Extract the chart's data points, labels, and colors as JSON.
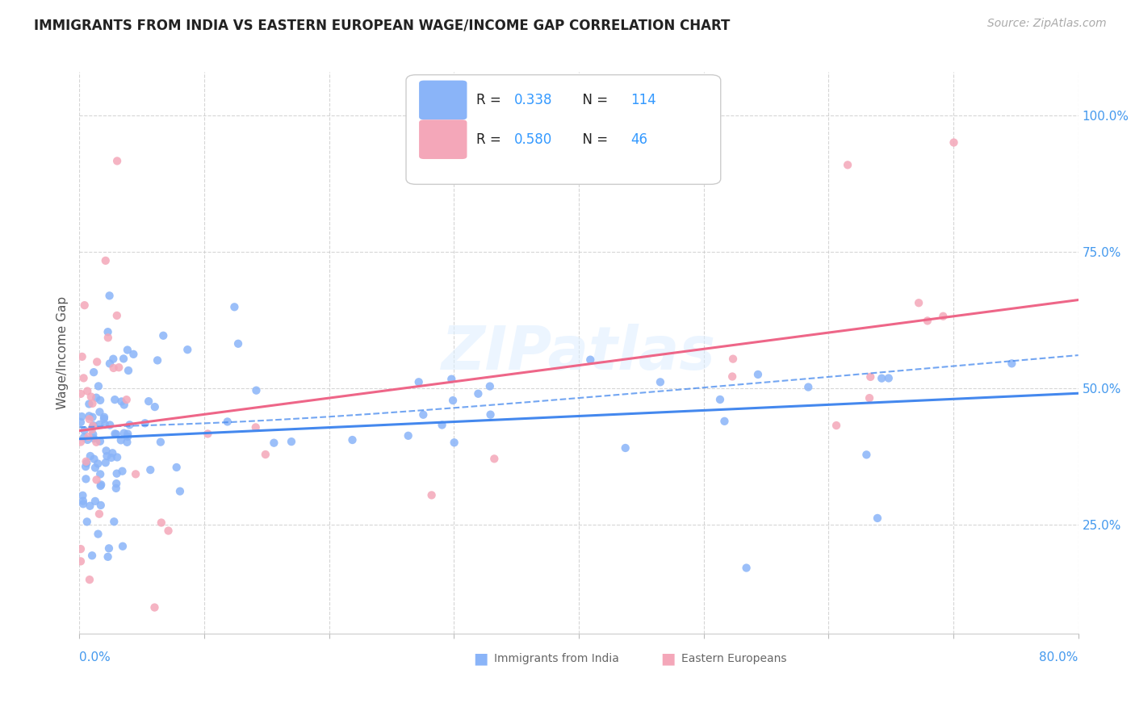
{
  "title": "IMMIGRANTS FROM INDIA VS EASTERN EUROPEAN WAGE/INCOME GAP CORRELATION CHART",
  "source": "Source: ZipAtlas.com",
  "ylabel": "Wage/Income Gap",
  "yticks": [
    "25.0%",
    "50.0%",
    "75.0%",
    "100.0%"
  ],
  "ytick_vals": [
    0.25,
    0.5,
    0.75,
    1.0
  ],
  "xmin": 0.0,
  "xmax": 0.8,
  "ymin": 0.05,
  "ymax": 1.08,
  "legend_india_R": "0.338",
  "legend_india_N": "114",
  "legend_ee_R": "0.580",
  "legend_ee_N": "46",
  "color_india": "#8ab4f8",
  "color_ee": "#f4a7b9",
  "color_india_line": "#4488ee",
  "color_ee_line": "#ee6688",
  "watermark": "ZIPatlas"
}
